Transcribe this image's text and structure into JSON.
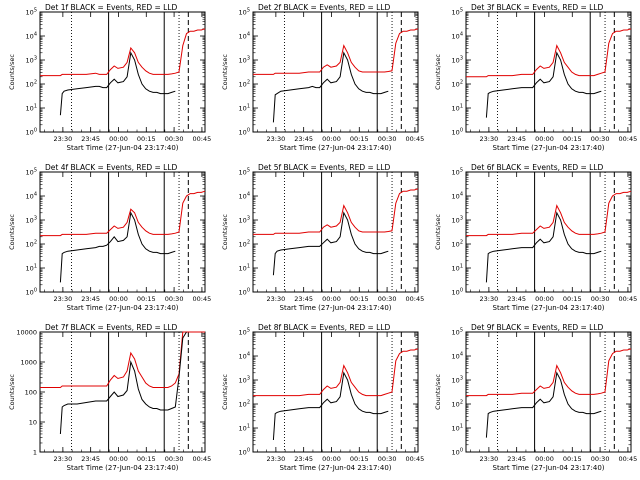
{
  "chart_data": {
    "type": "line",
    "layout": "3x3 grid of time-series panels",
    "legend_text": "BLACK = Events, RED = LLD",
    "series_colors": {
      "events": "#000000",
      "lld": "#e00000"
    },
    "xlabel": "Start Time (27-Jun-04 23:17:40)",
    "ylabel": "Counts/sec",
    "x_unit": "minutes after 23:17:40",
    "xlim": [
      0,
      89
    ],
    "x_tick_labels": [
      "23:30",
      "23:45",
      "00:00",
      "00:15",
      "00:30",
      "00:45"
    ],
    "x_tick_values": [
      12.33,
      27.33,
      42.33,
      57.33,
      72.33,
      87.33
    ],
    "markers": {
      "dotted": [
        17,
        75
      ],
      "solid": [
        37,
        67
      ],
      "dashed": [
        80
      ]
    },
    "profile_x": [
      0,
      10,
      11,
      12,
      13,
      15,
      20,
      25,
      30,
      32,
      34,
      36,
      38,
      40,
      42,
      45,
      47,
      49,
      51,
      53,
      55,
      57,
      59,
      61,
      63,
      65,
      67,
      69,
      71,
      73,
      75,
      77,
      79,
      81,
      83,
      85,
      87,
      89
    ],
    "panels": [
      {
        "title": "Det 1f",
        "ylim_exp": [
          0,
          5
        ],
        "ytick_style": "pow10",
        "lld": [
          2.35,
          2.35,
          2.35,
          2.4,
          2.4,
          2.4,
          2.4,
          2.4,
          2.45,
          2.4,
          2.4,
          2.4,
          2.6,
          2.75,
          2.65,
          2.7,
          2.9,
          3.5,
          3.3,
          2.9,
          2.7,
          2.55,
          2.45,
          2.4,
          2.4,
          2.4,
          2.4,
          2.4,
          2.42,
          2.45,
          2.5,
          3.6,
          4.1,
          4.2,
          4.2,
          4.25,
          4.25,
          4.3
        ],
        "events": [
          null,
          null,
          0.7,
          1.6,
          1.7,
          1.75,
          1.8,
          1.85,
          1.9,
          1.9,
          1.85,
          1.85,
          2.05,
          2.2,
          2.05,
          2.1,
          2.3,
          3.3,
          3.0,
          2.4,
          2.0,
          1.8,
          1.7,
          1.65,
          1.65,
          1.6,
          1.6,
          1.6,
          1.65,
          1.7,
          null,
          null,
          null,
          null,
          null,
          null,
          null,
          null
        ]
      },
      {
        "title": "Det 2f",
        "ylim_exp": [
          0,
          5
        ],
        "ytick_style": "pow10",
        "lld": [
          2.4,
          2.4,
          2.4,
          2.45,
          2.45,
          2.45,
          2.45,
          2.45,
          2.5,
          2.5,
          2.5,
          2.5,
          2.7,
          2.8,
          2.7,
          2.75,
          2.9,
          3.6,
          3.3,
          2.9,
          2.7,
          2.55,
          2.5,
          2.5,
          2.5,
          2.5,
          2.5,
          2.5,
          2.5,
          2.52,
          2.55,
          3.7,
          4.1,
          4.2,
          4.2,
          4.25,
          4.25,
          4.3
        ],
        "events": [
          null,
          null,
          0.4,
          1.55,
          1.6,
          1.7,
          1.75,
          1.8,
          1.85,
          1.9,
          1.85,
          1.85,
          2.05,
          2.2,
          2.05,
          2.1,
          2.3,
          3.3,
          3.0,
          2.4,
          2.0,
          1.8,
          1.7,
          1.65,
          1.65,
          1.6,
          1.6,
          1.6,
          1.65,
          1.7,
          null,
          null,
          null,
          null,
          null,
          null,
          null,
          null
        ]
      },
      {
        "title": "Det 3f",
        "ylim_exp": [
          0,
          5
        ],
        "ytick_style": "pow10",
        "lld": [
          2.3,
          2.3,
          2.3,
          2.35,
          2.35,
          2.35,
          2.35,
          2.35,
          2.4,
          2.4,
          2.4,
          2.4,
          2.6,
          2.75,
          2.65,
          2.7,
          2.9,
          3.6,
          3.3,
          2.9,
          2.7,
          2.5,
          2.4,
          2.35,
          2.35,
          2.35,
          2.35,
          2.35,
          2.4,
          2.45,
          2.5,
          3.7,
          4.1,
          4.2,
          4.2,
          4.25,
          4.25,
          4.3
        ],
        "events": [
          null,
          null,
          0.6,
          1.6,
          1.65,
          1.7,
          1.75,
          1.8,
          1.85,
          1.85,
          1.85,
          1.85,
          2.05,
          2.2,
          2.05,
          2.1,
          2.3,
          3.3,
          3.0,
          2.4,
          2.0,
          1.8,
          1.7,
          1.65,
          1.65,
          1.6,
          1.6,
          1.6,
          1.65,
          1.7,
          null,
          null,
          null,
          null,
          null,
          null,
          null,
          null
        ]
      },
      {
        "title": "Det 4f",
        "ylim_exp": [
          0,
          5
        ],
        "ytick_style": "pow10",
        "lld": [
          2.35,
          2.35,
          2.35,
          2.4,
          2.4,
          2.4,
          2.4,
          2.4,
          2.45,
          2.45,
          2.45,
          2.45,
          2.6,
          2.75,
          2.65,
          2.7,
          2.9,
          3.45,
          3.3,
          2.9,
          2.7,
          2.55,
          2.45,
          2.4,
          2.4,
          2.4,
          2.4,
          2.4,
          2.42,
          2.45,
          2.5,
          3.7,
          4.0,
          4.1,
          4.1,
          4.15,
          4.15,
          4.2
        ],
        "events": [
          null,
          null,
          0.4,
          1.6,
          1.65,
          1.7,
          1.75,
          1.8,
          1.85,
          1.9,
          1.9,
          1.95,
          2.1,
          2.3,
          2.1,
          2.15,
          2.3,
          3.3,
          3.0,
          2.4,
          2.0,
          1.8,
          1.7,
          1.65,
          1.65,
          1.6,
          1.6,
          1.6,
          1.65,
          1.7,
          null,
          null,
          null,
          null,
          null,
          null,
          null,
          null
        ]
      },
      {
        "title": "Det 5f",
        "ylim_exp": [
          0,
          5
        ],
        "ytick_style": "pow10",
        "lld": [
          2.4,
          2.4,
          2.4,
          2.45,
          2.45,
          2.45,
          2.45,
          2.45,
          2.5,
          2.5,
          2.5,
          2.5,
          2.7,
          2.8,
          2.7,
          2.75,
          2.9,
          3.6,
          3.3,
          2.9,
          2.7,
          2.55,
          2.5,
          2.5,
          2.5,
          2.5,
          2.5,
          2.5,
          2.5,
          2.52,
          2.55,
          3.7,
          4.1,
          4.2,
          4.2,
          4.25,
          4.25,
          4.3
        ],
        "events": [
          null,
          null,
          0.7,
          1.6,
          1.7,
          1.75,
          1.8,
          1.85,
          1.9,
          1.9,
          1.9,
          1.9,
          2.05,
          2.2,
          2.05,
          2.1,
          2.3,
          3.3,
          3.0,
          2.4,
          2.0,
          1.8,
          1.7,
          1.65,
          1.65,
          1.6,
          1.6,
          1.6,
          1.65,
          1.7,
          null,
          null,
          null,
          null,
          null,
          null,
          null,
          null
        ]
      },
      {
        "title": "Det 6f",
        "ylim_exp": [
          0,
          5
        ],
        "ytick_style": "pow10",
        "lld": [
          2.35,
          2.35,
          2.35,
          2.4,
          2.4,
          2.4,
          2.4,
          2.4,
          2.45,
          2.45,
          2.45,
          2.45,
          2.6,
          2.75,
          2.65,
          2.7,
          2.9,
          3.6,
          3.3,
          2.9,
          2.7,
          2.55,
          2.45,
          2.4,
          2.4,
          2.4,
          2.4,
          2.4,
          2.42,
          2.45,
          2.5,
          3.7,
          4.0,
          4.1,
          4.1,
          4.15,
          4.15,
          4.2
        ],
        "events": [
          null,
          null,
          0.4,
          1.6,
          1.65,
          1.7,
          1.75,
          1.8,
          1.85,
          1.85,
          1.85,
          1.85,
          2.05,
          2.2,
          2.05,
          2.1,
          2.3,
          3.3,
          3.0,
          2.4,
          2.0,
          1.8,
          1.7,
          1.65,
          1.65,
          1.6,
          1.6,
          1.6,
          1.65,
          1.7,
          null,
          null,
          null,
          null,
          null,
          null,
          null,
          null
        ]
      },
      {
        "title": "Det 7f",
        "ylim_exp": [
          0,
          4
        ],
        "ytick_style": "plain",
        "ytick_labels": [
          "1",
          "10",
          "100",
          "1000",
          "10000"
        ],
        "lld": [
          2.15,
          2.15,
          2.15,
          2.2,
          2.2,
          2.2,
          2.2,
          2.2,
          2.2,
          2.2,
          2.2,
          2.2,
          2.4,
          2.55,
          2.45,
          2.5,
          2.7,
          3.3,
          3.1,
          2.7,
          2.5,
          2.3,
          2.2,
          2.15,
          2.15,
          2.15,
          2.15,
          2.15,
          2.2,
          2.3,
          2.6,
          4.1,
          4.2,
          4.2,
          4.2,
          4.2,
          4.2,
          4.2
        ],
        "events": [
          null,
          null,
          0.6,
          1.5,
          1.55,
          1.6,
          1.6,
          1.65,
          1.7,
          1.7,
          1.7,
          1.7,
          1.85,
          2.0,
          1.85,
          1.9,
          2.05,
          3.0,
          2.7,
          2.1,
          1.75,
          1.6,
          1.5,
          1.45,
          1.45,
          1.4,
          1.4,
          1.4,
          1.45,
          1.5,
          2.5,
          3.8,
          4.2,
          null,
          null,
          null,
          null,
          null
        ]
      },
      {
        "title": "Det 8f",
        "ylim_exp": [
          0,
          5
        ],
        "ytick_style": "pow10",
        "lld": [
          2.35,
          2.35,
          2.35,
          2.35,
          2.35,
          2.35,
          2.35,
          2.35,
          2.4,
          2.4,
          2.4,
          2.4,
          2.6,
          2.75,
          2.65,
          2.7,
          2.9,
          3.6,
          3.3,
          2.9,
          2.7,
          2.5,
          2.4,
          2.35,
          2.35,
          2.35,
          2.35,
          2.35,
          2.4,
          2.45,
          2.5,
          3.8,
          4.1,
          4.2,
          4.2,
          4.25,
          4.25,
          4.3
        ],
        "events": [
          null,
          null,
          0.5,
          1.6,
          1.65,
          1.7,
          1.75,
          1.8,
          1.85,
          1.85,
          1.85,
          1.85,
          2.05,
          2.2,
          2.05,
          2.1,
          2.3,
          3.3,
          3.0,
          2.4,
          2.0,
          1.8,
          1.7,
          1.65,
          1.65,
          1.6,
          1.6,
          1.6,
          1.65,
          1.7,
          null,
          null,
          null,
          null,
          null,
          null,
          null,
          null
        ]
      },
      {
        "title": "Det 9f",
        "ylim_exp": [
          0,
          5
        ],
        "ytick_style": "pow10",
        "lld": [
          2.35,
          2.35,
          2.35,
          2.4,
          2.4,
          2.4,
          2.4,
          2.4,
          2.45,
          2.45,
          2.45,
          2.45,
          2.6,
          2.75,
          2.65,
          2.7,
          2.9,
          3.6,
          3.3,
          2.9,
          2.7,
          2.55,
          2.45,
          2.4,
          2.4,
          2.4,
          2.4,
          2.4,
          2.42,
          2.45,
          2.5,
          3.8,
          4.1,
          4.2,
          4.2,
          4.25,
          4.25,
          4.3
        ],
        "events": [
          null,
          null,
          0.6,
          1.6,
          1.65,
          1.7,
          1.75,
          1.8,
          1.85,
          1.85,
          1.85,
          1.85,
          2.05,
          2.2,
          2.05,
          2.1,
          2.3,
          3.3,
          3.0,
          2.4,
          2.0,
          1.8,
          1.7,
          1.65,
          1.65,
          1.6,
          1.6,
          1.6,
          1.65,
          1.7,
          null,
          null,
          null,
          null,
          null,
          null,
          null,
          null
        ]
      }
    ]
  }
}
